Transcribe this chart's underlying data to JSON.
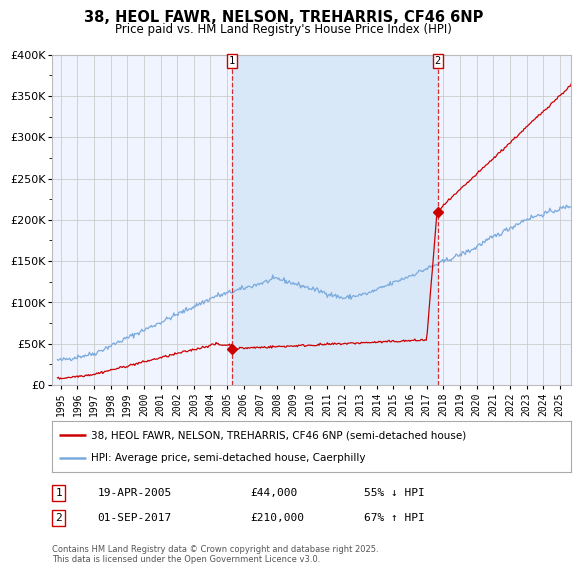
{
  "title": "38, HEOL FAWR, NELSON, TREHARRIS, CF46 6NP",
  "subtitle": "Price paid vs. HM Land Registry's House Price Index (HPI)",
  "background_color": "#ffffff",
  "plot_bg_color": "#f0f4ff",
  "plot_bg_color2": "#dce8f8",
  "grid_color": "#cccccc",
  "red_color": "#cc0000",
  "blue_color": "#7aaadd",
  "shade_color": "#d8e8f8",
  "purchase1_year": 2005.3,
  "purchase1_price": 44000,
  "purchase1_label": "1",
  "purchase2_year": 2017.67,
  "purchase2_price": 210000,
  "purchase2_label": "2",
  "legend1": "38, HEOL FAWR, NELSON, TREHARRIS, CF46 6NP (semi-detached house)",
  "legend2": "HPI: Average price, semi-detached house, Caerphilly",
  "table1_num": "1",
  "table1_date": "19-APR-2005",
  "table1_price": "£44,000",
  "table1_hpi": "55% ↓ HPI",
  "table2_num": "2",
  "table2_date": "01-SEP-2017",
  "table2_price": "£210,000",
  "table2_hpi": "67% ↑ HPI",
  "footer": "Contains HM Land Registry data © Crown copyright and database right 2025.\nThis data is licensed under the Open Government Licence v3.0.",
  "ylim": [
    0,
    400000
  ],
  "xlim_start": 1994.5,
  "xlim_end": 2025.7,
  "yticks": [
    0,
    50000,
    100000,
    150000,
    200000,
    250000,
    300000,
    350000,
    400000
  ]
}
